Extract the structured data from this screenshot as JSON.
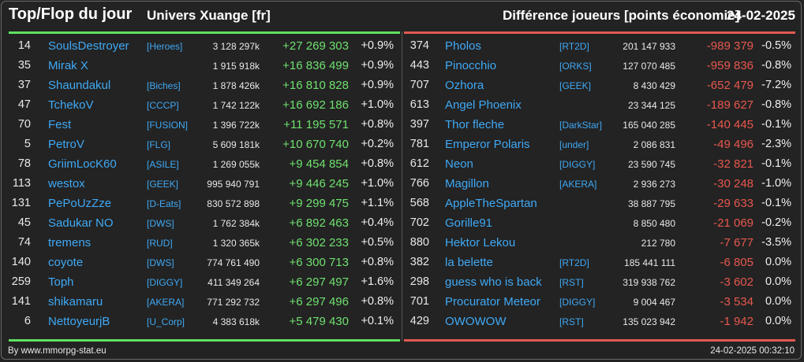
{
  "header": {
    "title": "Top/Flop du jour",
    "universe": "Univers Xuange [fr]",
    "metric": "Différence joueurs [points économie]",
    "date": "24-02-2025"
  },
  "colors": {
    "positive": "#6fe06f",
    "negative": "#e8574e",
    "link": "#3fa9f5"
  },
  "top": [
    {
      "rank": "14",
      "name": "SoulsDestroyer",
      "alliance": "[Heroes]",
      "points": "3 128 297k",
      "diff": "+27 269 303",
      "pct": "+0.9%"
    },
    {
      "rank": "35",
      "name": "Mirak X",
      "alliance": "",
      "points": "1 915 918k",
      "diff": "+16 836 499",
      "pct": "+0.9%"
    },
    {
      "rank": "37",
      "name": "Shaundakul",
      "alliance": "[Biches]",
      "points": "1 878 426k",
      "diff": "+16 810 828",
      "pct": "+0.9%"
    },
    {
      "rank": "47",
      "name": "TchekoV",
      "alliance": "[CCCP]",
      "points": "1 742 122k",
      "diff": "+16 692 186",
      "pct": "+1.0%"
    },
    {
      "rank": "70",
      "name": "Fest",
      "alliance": "[FUSION]",
      "points": "1 396 722k",
      "diff": "+11 195 571",
      "pct": "+0.8%"
    },
    {
      "rank": "5",
      "name": "PetroV",
      "alliance": "[FLG]",
      "points": "5 609 181k",
      "diff": "+10 670 740",
      "pct": "+0.2%"
    },
    {
      "rank": "78",
      "name": "GriimLocK60",
      "alliance": "[ASILE]",
      "points": "1 269 055k",
      "diff": "+9 454 854",
      "pct": "+0.8%"
    },
    {
      "rank": "113",
      "name": "westox",
      "alliance": "[GEEK]",
      "points": "995 940 791",
      "diff": "+9 446 245",
      "pct": "+1.0%"
    },
    {
      "rank": "131",
      "name": "PePoUzZze",
      "alliance": "[D-Eats]",
      "points": "830 572 898",
      "diff": "+9 299 475",
      "pct": "+1.1%"
    },
    {
      "rank": "45",
      "name": "Sadukar NO",
      "alliance": "[DWS]",
      "points": "1 762 384k",
      "diff": "+6 892 463",
      "pct": "+0.4%"
    },
    {
      "rank": "74",
      "name": "tremens",
      "alliance": "[RUD]",
      "points": "1 320 365k",
      "diff": "+6 302 233",
      "pct": "+0.5%"
    },
    {
      "rank": "140",
      "name": "coyote",
      "alliance": "[DWS]",
      "points": "774 761 490",
      "diff": "+6 300 713",
      "pct": "+0.8%"
    },
    {
      "rank": "259",
      "name": "Toph",
      "alliance": "[DIGGY]",
      "points": "411 349 264",
      "diff": "+6 297 497",
      "pct": "+1.6%"
    },
    {
      "rank": "141",
      "name": "shikamaru",
      "alliance": "[AKERA]",
      "points": "771 292 732",
      "diff": "+6 297 496",
      "pct": "+0.8%"
    },
    {
      "rank": "6",
      "name": "NettoyeurjB",
      "alliance": "[U_Corp]",
      "points": "4 383 618k",
      "diff": "+5 479 430",
      "pct": "+0.1%"
    }
  ],
  "flop": [
    {
      "rank": "374",
      "name": "Pholos",
      "alliance": "[RT2D]",
      "points": "201 147 933",
      "diff": "-989 379",
      "pct": "-0.5%"
    },
    {
      "rank": "443",
      "name": "Pinocchio",
      "alliance": "[ORKS]",
      "points": "127 070 485",
      "diff": "-959 836",
      "pct": "-0.8%"
    },
    {
      "rank": "707",
      "name": "Ozhora",
      "alliance": "[GEEK]",
      "points": "8 430 429",
      "diff": "-652 479",
      "pct": "-7.2%"
    },
    {
      "rank": "613",
      "name": "Angel Phoenix",
      "alliance": "",
      "points": "23 344 125",
      "diff": "-189 627",
      "pct": "-0.8%"
    },
    {
      "rank": "397",
      "name": "Thor fleche",
      "alliance": "[DarkStar]",
      "points": "165 040 285",
      "diff": "-140 445",
      "pct": "-0.1%"
    },
    {
      "rank": "781",
      "name": "Emperor Polaris",
      "alliance": "[under]",
      "points": "2 086 831",
      "diff": "-49 496",
      "pct": "-2.3%"
    },
    {
      "rank": "612",
      "name": "Neon",
      "alliance": "[DIGGY]",
      "points": "23 590 745",
      "diff": "-32 821",
      "pct": "-0.1%"
    },
    {
      "rank": "766",
      "name": "Magillon",
      "alliance": "[AKERA]",
      "points": "2 936 273",
      "diff": "-30 248",
      "pct": "-1.0%"
    },
    {
      "rank": "568",
      "name": "AppleTheSpartan",
      "alliance": "",
      "points": "38 887 795",
      "diff": "-29 633",
      "pct": "-0.1%"
    },
    {
      "rank": "702",
      "name": "Gorille91",
      "alliance": "",
      "points": "8 850 480",
      "diff": "-21 069",
      "pct": "-0.2%"
    },
    {
      "rank": "880",
      "name": "Hektor Lekou",
      "alliance": "",
      "points": "212 780",
      "diff": "-7 677",
      "pct": "-3.5%"
    },
    {
      "rank": "382",
      "name": "la belette",
      "alliance": "[RT2D]",
      "points": "185 441 111",
      "diff": "-6 805",
      "pct": "0.0%"
    },
    {
      "rank": "298",
      "name": "guess who is back",
      "alliance": "[RST]",
      "points": "319 938 762",
      "diff": "-3 602",
      "pct": "0.0%"
    },
    {
      "rank": "701",
      "name": "Procurator Meteor",
      "alliance": "[DIGGY]",
      "points": "9 004 467",
      "diff": "-3 534",
      "pct": "0.0%"
    },
    {
      "rank": "429",
      "name": "OWOWOW",
      "alliance": "[RST]",
      "points": "135 023 942",
      "diff": "-1 942",
      "pct": "0.0%"
    }
  ],
  "footer": {
    "credit": "By www.mmorpg-stat.eu",
    "timestamp": "24-02-2025 00:32:10"
  }
}
